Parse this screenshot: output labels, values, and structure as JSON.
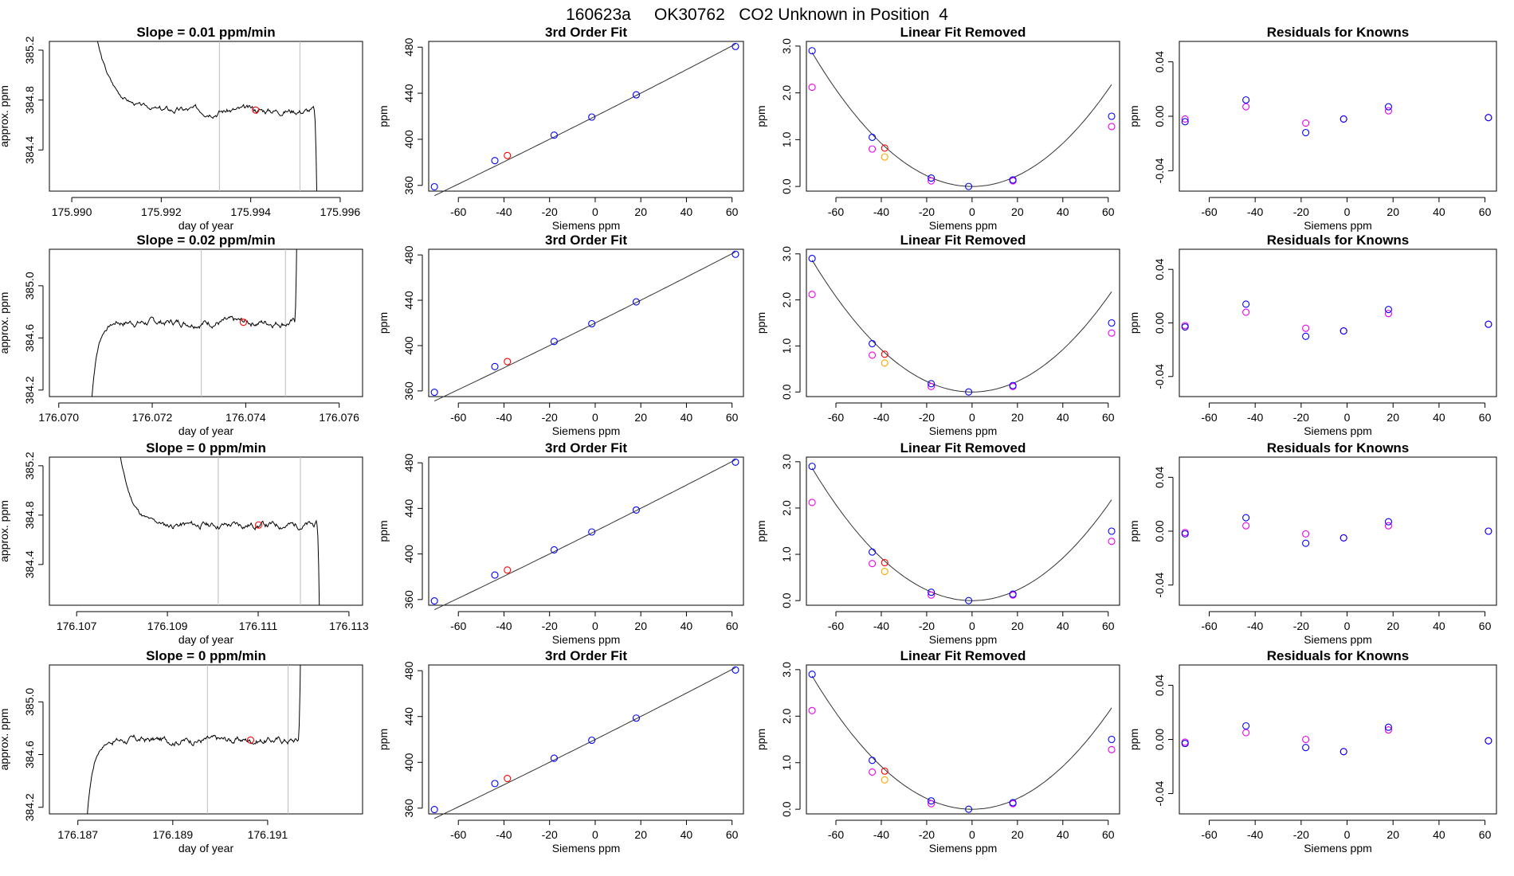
{
  "main_title": "160623a     OK30762   CO2 Unknown in Position  4",
  "colors": {
    "trace": "#000000",
    "gridline": "#bebebe",
    "unknown": "#ff0000",
    "known": "#0000ff",
    "alt": "#ee00ee",
    "orange": "#ffa500",
    "curve": "#333333"
  },
  "titles": {
    "fit": "3rd Order Fit",
    "linear": "Linear Fit Removed",
    "residuals": "Residuals for Knowns"
  },
  "labels": {
    "ppm": "ppm",
    "siemens": "Siemens ppm",
    "day": "day of year",
    "approx": "approx. ppm"
  },
  "siemens_ticks": [
    "-60",
    "-40",
    "-20",
    "0",
    "20",
    "40",
    "60"
  ],
  "chart_data": [
    {
      "type": "line",
      "row": 1,
      "title": "Slope =  0.01  ppm/min",
      "xlabel": "day of year",
      "ylabel": "approx. ppm",
      "xlim": [
        175.9895,
        175.9965
      ],
      "ylim": [
        384.07,
        385.27
      ],
      "xticks": [
        "175.990",
        "175.992",
        "175.994",
        "175.996"
      ],
      "yticks": [
        "384.4",
        "384.8",
        "385.2"
      ],
      "vlines": [
        175.9933,
        175.9951
      ],
      "trace": {
        "start": 175.9904,
        "end": 175.99548,
        "level": 384.72,
        "rise_from": 385.6,
        "drop_end": 384.0,
        "settle": 175.9919,
        "seed": 3,
        "shape": "down"
      },
      "unknown_point": [
        175.99411,
        384.72
      ]
    },
    {
      "type": "line",
      "row": 2,
      "title": "Slope =  0.02  ppm/min",
      "xlabel": "day of year",
      "ylabel": "approx. ppm",
      "xlim": [
        176.0698,
        176.0765
      ],
      "ylim": [
        384.15,
        385.28
      ],
      "xticks": [
        "176.070",
        "176.072",
        "176.074",
        "176.076"
      ],
      "yticks": [
        "384.2",
        "384.6",
        "385.0"
      ],
      "vlines": [
        176.07305,
        176.07485
      ],
      "trace": {
        "start": 176.07068,
        "end": 176.0751,
        "level": 384.72,
        "rise_from": 384.0,
        "drop_end": 385.6,
        "settle": 176.0712,
        "seed": 7,
        "shape": "up"
      },
      "unknown_point": [
        176.07395,
        384.72
      ]
    },
    {
      "type": "line",
      "row": 3,
      "title": "Slope =  0  ppm/min",
      "xlabel": "day of year",
      "ylabel": "approx. ppm",
      "xlim": [
        176.1064,
        176.1133
      ],
      "ylim": [
        384.07,
        385.27
      ],
      "xticks": [
        "176.107",
        "176.109",
        "176.111",
        "176.113"
      ],
      "yticks": [
        "384.4",
        "384.8",
        "385.2"
      ],
      "vlines": [
        176.11012,
        176.11193
      ],
      "trace": {
        "start": 176.10785,
        "end": 176.11235,
        "level": 384.72,
        "rise_from": 385.6,
        "drop_end": 384.0,
        "settle": 176.1089,
        "seed": 11,
        "shape": "down"
      },
      "unknown_point": [
        176.11101,
        384.72
      ]
    },
    {
      "type": "line",
      "row": 4,
      "title": "Slope =  0  ppm/min",
      "xlabel": "day of year",
      "ylabel": "approx. ppm",
      "xlim": [
        176.1864,
        176.193
      ],
      "ylim": [
        384.15,
        385.28
      ],
      "xticks": [
        "176.187",
        "176.189",
        "176.191"
      ],
      "yticks": [
        "384.2",
        "384.6",
        "385.0"
      ],
      "vlines": [
        176.18973,
        176.19143
      ],
      "trace": {
        "start": 176.18717,
        "end": 176.1917,
        "level": 384.71,
        "rise_from": 384.0,
        "drop_end": 385.6,
        "settle": 176.1877,
        "seed": 17,
        "shape": "up"
      },
      "unknown_point": [
        176.19064,
        384.71
      ]
    },
    {
      "type": "scatter",
      "kind": "fit",
      "title": "3rd Order Fit",
      "xlabel": "Siemens ppm",
      "ylabel": "ppm",
      "xlim": [
        -73,
        65
      ],
      "ylim": [
        355,
        485
      ],
      "yticks": [
        "360",
        "400",
        "440",
        "480"
      ],
      "curve": {
        "a0": 419.93,
        "a1": 1.0,
        "a2": 0.000326
      },
      "knowns": [
        [
          -70.5,
          358.8
        ],
        [
          -44.0,
          381.5
        ],
        [
          -18.0,
          403.6
        ],
        [
          -1.5,
          419.3
        ],
        [
          18.0,
          438.6
        ],
        [
          61.5,
          480.6
        ]
      ],
      "unknown": [
        -38.5,
        385.9
      ]
    },
    {
      "type": "scatter",
      "kind": "linear",
      "title": "Linear Fit Removed",
      "xlabel": "Siemens ppm",
      "ylabel": "ppm",
      "xlim": [
        -73,
        65
      ],
      "ylim": [
        -0.1,
        3.1
      ],
      "yticks": [
        "0.0",
        "1.0",
        "2.0",
        "3.0"
      ],
      "curve": {
        "a0": 0.0,
        "a1": 0.0,
        "a2": 0.000576
      },
      "knowns": [
        [
          -70.5,
          2.9
        ],
        [
          -44.0,
          1.05
        ],
        [
          -18.0,
          0.18
        ],
        [
          -1.5,
          0.0
        ],
        [
          18.0,
          0.14
        ],
        [
          61.5,
          1.5
        ]
      ],
      "alt": [
        [
          -70.5,
          2.12
        ],
        [
          -44.0,
          0.8
        ],
        [
          -18.0,
          0.12
        ],
        [
          18.0,
          0.12
        ],
        [
          61.5,
          1.28
        ]
      ],
      "orange": [
        [
          -38.5,
          0.63
        ]
      ],
      "unknown": [
        -38.5,
        0.82
      ]
    },
    {
      "type": "scatter",
      "kind": "residuals",
      "row": 1,
      "title": "Residuals for Knowns",
      "xlabel": "Siemens ppm",
      "ylabel": "ppm",
      "xlim": [
        -73,
        65
      ],
      "ylim": [
        -0.055,
        0.055
      ],
      "yticks": [
        "-0.04",
        "0.00",
        "0.04"
      ],
      "knowns": [
        [
          -70.5,
          -0.004
        ],
        [
          -44.0,
          0.012
        ],
        [
          -18.0,
          -0.012
        ],
        [
          -1.5,
          -0.002
        ],
        [
          18.0,
          0.007
        ],
        [
          61.5,
          -0.001
        ]
      ],
      "alt": [
        [
          -70.5,
          -0.002
        ],
        [
          -44.0,
          0.007
        ],
        [
          -18.0,
          -0.005
        ],
        [
          -1.5,
          -0.002
        ],
        [
          18.0,
          0.004
        ],
        [
          61.5,
          -0.001
        ]
      ]
    },
    {
      "type": "scatter",
      "kind": "residuals",
      "row": 2,
      "title": "Residuals for Knowns",
      "xlabel": "Siemens ppm",
      "ylabel": "ppm",
      "xlim": [
        -73,
        65
      ],
      "ylim": [
        -0.055,
        0.055
      ],
      "yticks": [
        "-0.04",
        "0.00",
        "0.04"
      ],
      "knowns": [
        [
          -70.5,
          -0.003
        ],
        [
          -44.0,
          0.014
        ],
        [
          -18.0,
          -0.01
        ],
        [
          -1.5,
          -0.006
        ],
        [
          18.0,
          0.01
        ],
        [
          61.5,
          -0.001
        ]
      ],
      "alt": [
        [
          -70.5,
          -0.002
        ],
        [
          -44.0,
          0.008
        ],
        [
          -18.0,
          -0.004
        ],
        [
          -1.5,
          -0.006
        ],
        [
          18.0,
          0.007
        ],
        [
          61.5,
          -0.001
        ]
      ]
    },
    {
      "type": "scatter",
      "kind": "residuals",
      "row": 3,
      "title": "Residuals for Knowns",
      "xlabel": "Siemens ppm",
      "ylabel": "ppm",
      "xlim": [
        -73,
        65
      ],
      "ylim": [
        -0.055,
        0.055
      ],
      "yticks": [
        "-0.04",
        "0.00",
        "0.04"
      ],
      "knowns": [
        [
          -70.5,
          -0.002
        ],
        [
          -44.0,
          0.01
        ],
        [
          -18.0,
          -0.009
        ],
        [
          -1.5,
          -0.005
        ],
        [
          18.0,
          0.007
        ],
        [
          61.5,
          0.0
        ]
      ],
      "alt": [
        [
          -70.5,
          -0.001
        ],
        [
          -44.0,
          0.004
        ],
        [
          -18.0,
          -0.002
        ],
        [
          -1.5,
          -0.005
        ],
        [
          18.0,
          0.004
        ],
        [
          61.5,
          0.0
        ]
      ]
    },
    {
      "type": "scatter",
      "kind": "residuals",
      "row": 4,
      "title": "Residuals for Knowns",
      "xlabel": "Siemens ppm",
      "ylabel": "ppm",
      "xlim": [
        -73,
        65
      ],
      "ylim": [
        -0.055,
        0.055
      ],
      "yticks": [
        "-0.04",
        "0.00",
        "0.04"
      ],
      "knowns": [
        [
          -70.5,
          -0.003
        ],
        [
          -44.0,
          0.01
        ],
        [
          -18.0,
          -0.006
        ],
        [
          -1.5,
          -0.009
        ],
        [
          18.0,
          0.009
        ],
        [
          61.5,
          -0.001
        ]
      ],
      "alt": [
        [
          -70.5,
          -0.002
        ],
        [
          -44.0,
          0.005
        ],
        [
          -18.0,
          0.0
        ],
        [
          -1.5,
          -0.009
        ],
        [
          18.0,
          0.007
        ],
        [
          61.5,
          -0.001
        ]
      ]
    }
  ]
}
